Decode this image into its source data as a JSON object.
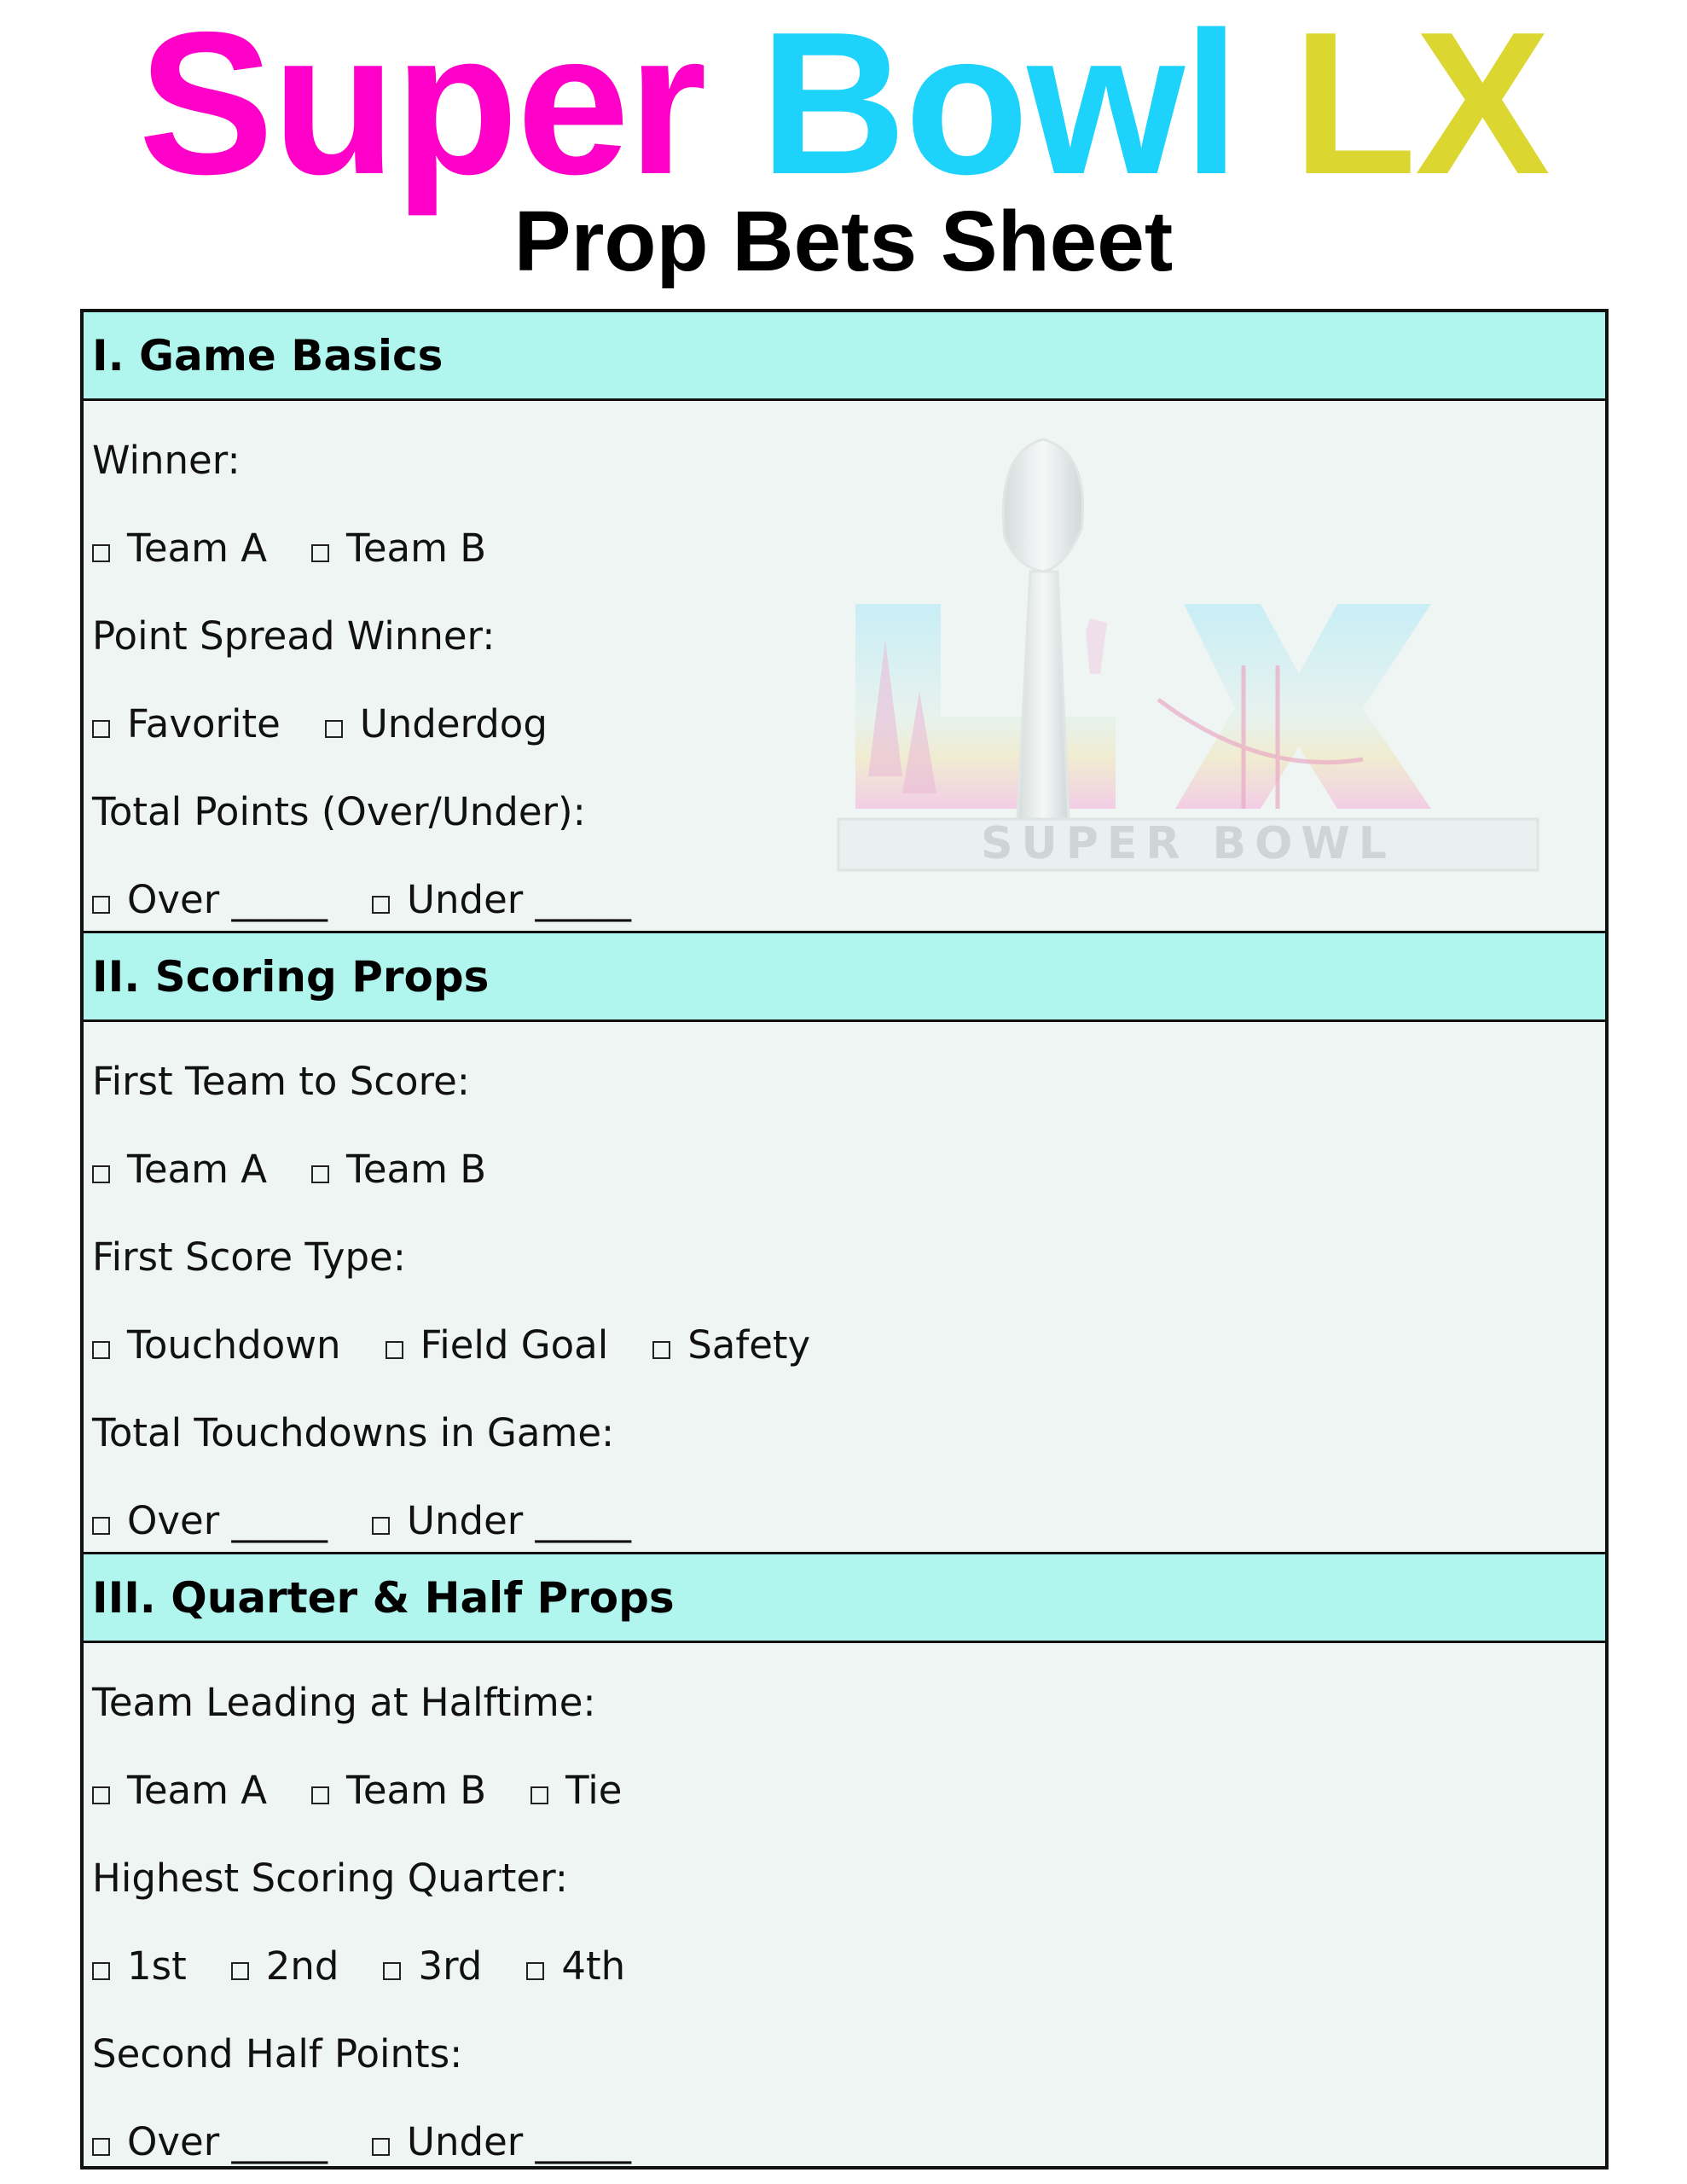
{
  "title": {
    "word1": "Super",
    "word2": "Bowl",
    "word3": "LX",
    "colors": [
      "#ff00c8",
      "#1ed3fb",
      "#dbd730"
    ]
  },
  "subtitle": "Prop Bets Sheet",
  "logo": {
    "text": "SUPER BOWL",
    "mark": "LX"
  },
  "colors": {
    "header_bg": "#b0f5ee",
    "body_bg": "#eef5f3"
  },
  "sections": [
    {
      "title": "I. Game Basics",
      "questions": [
        {
          "label": "Winner:",
          "options": [
            "Team A",
            "Team B"
          ]
        },
        {
          "label": "Point Spread Winner:",
          "options": [
            "Favorite",
            "Underdog"
          ]
        },
        {
          "label": "Total Points (Over/Under):",
          "options": [
            "Over _____",
            "Under _____"
          ]
        }
      ]
    },
    {
      "title": "II. Scoring Props",
      "questions": [
        {
          "label": "First Team to Score:",
          "options": [
            "Team A",
            "Team B"
          ]
        },
        {
          "label": "First Score Type:",
          "options": [
            "Touchdown",
            "Field Goal",
            "Safety"
          ]
        },
        {
          "label": "Total Touchdowns in Game:",
          "options": [
            "Over _____",
            "Under _____"
          ]
        }
      ]
    },
    {
      "title": "III. Quarter & Half Props",
      "questions": [
        {
          "label": "Team Leading at Halftime:",
          "options": [
            "Team A",
            "Team B",
            "Tie"
          ]
        },
        {
          "label": "Highest Scoring Quarter:",
          "options": [
            "1st",
            "2nd",
            "3rd",
            "4th"
          ]
        },
        {
          "label": "Second Half Points:",
          "options": [
            "Over _____",
            "Under _____"
          ]
        }
      ]
    }
  ]
}
